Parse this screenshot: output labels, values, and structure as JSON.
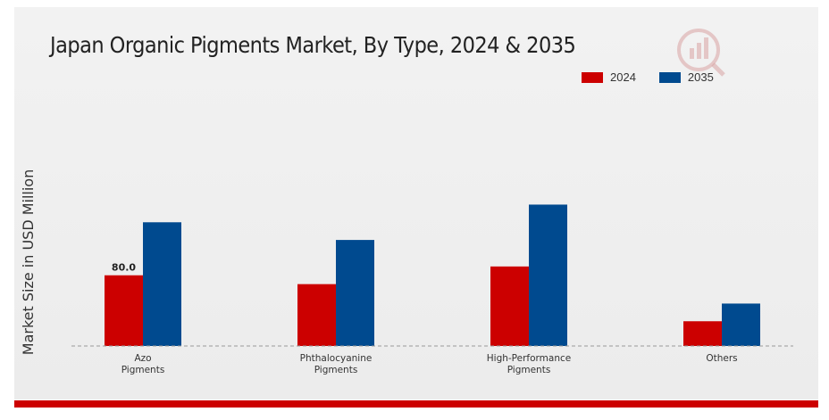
{
  "chart_data": {
    "type": "bar",
    "title": "Japan Organic Pigments Market, By Type, 2024 & 2035",
    "xlabel": "",
    "ylabel": "Market Size in USD Million",
    "categories": [
      "Azo\nPigments",
      "Phthalocyanine\nPigments",
      "High-Performance\nPigments",
      "Others"
    ],
    "series": [
      {
        "name": "2024",
        "color": "#cc0000",
        "values": [
          80.0,
          70.0,
          90.0,
          28.0
        ]
      },
      {
        "name": "2035",
        "color": "#004a8f",
        "values": [
          140.0,
          120.0,
          160.0,
          48.0
        ]
      }
    ],
    "data_labels": [
      {
        "series": 0,
        "category": 0,
        "text": "80.0"
      }
    ],
    "ylim": [
      0,
      220
    ],
    "grid": false,
    "legend_position": "top-right"
  }
}
